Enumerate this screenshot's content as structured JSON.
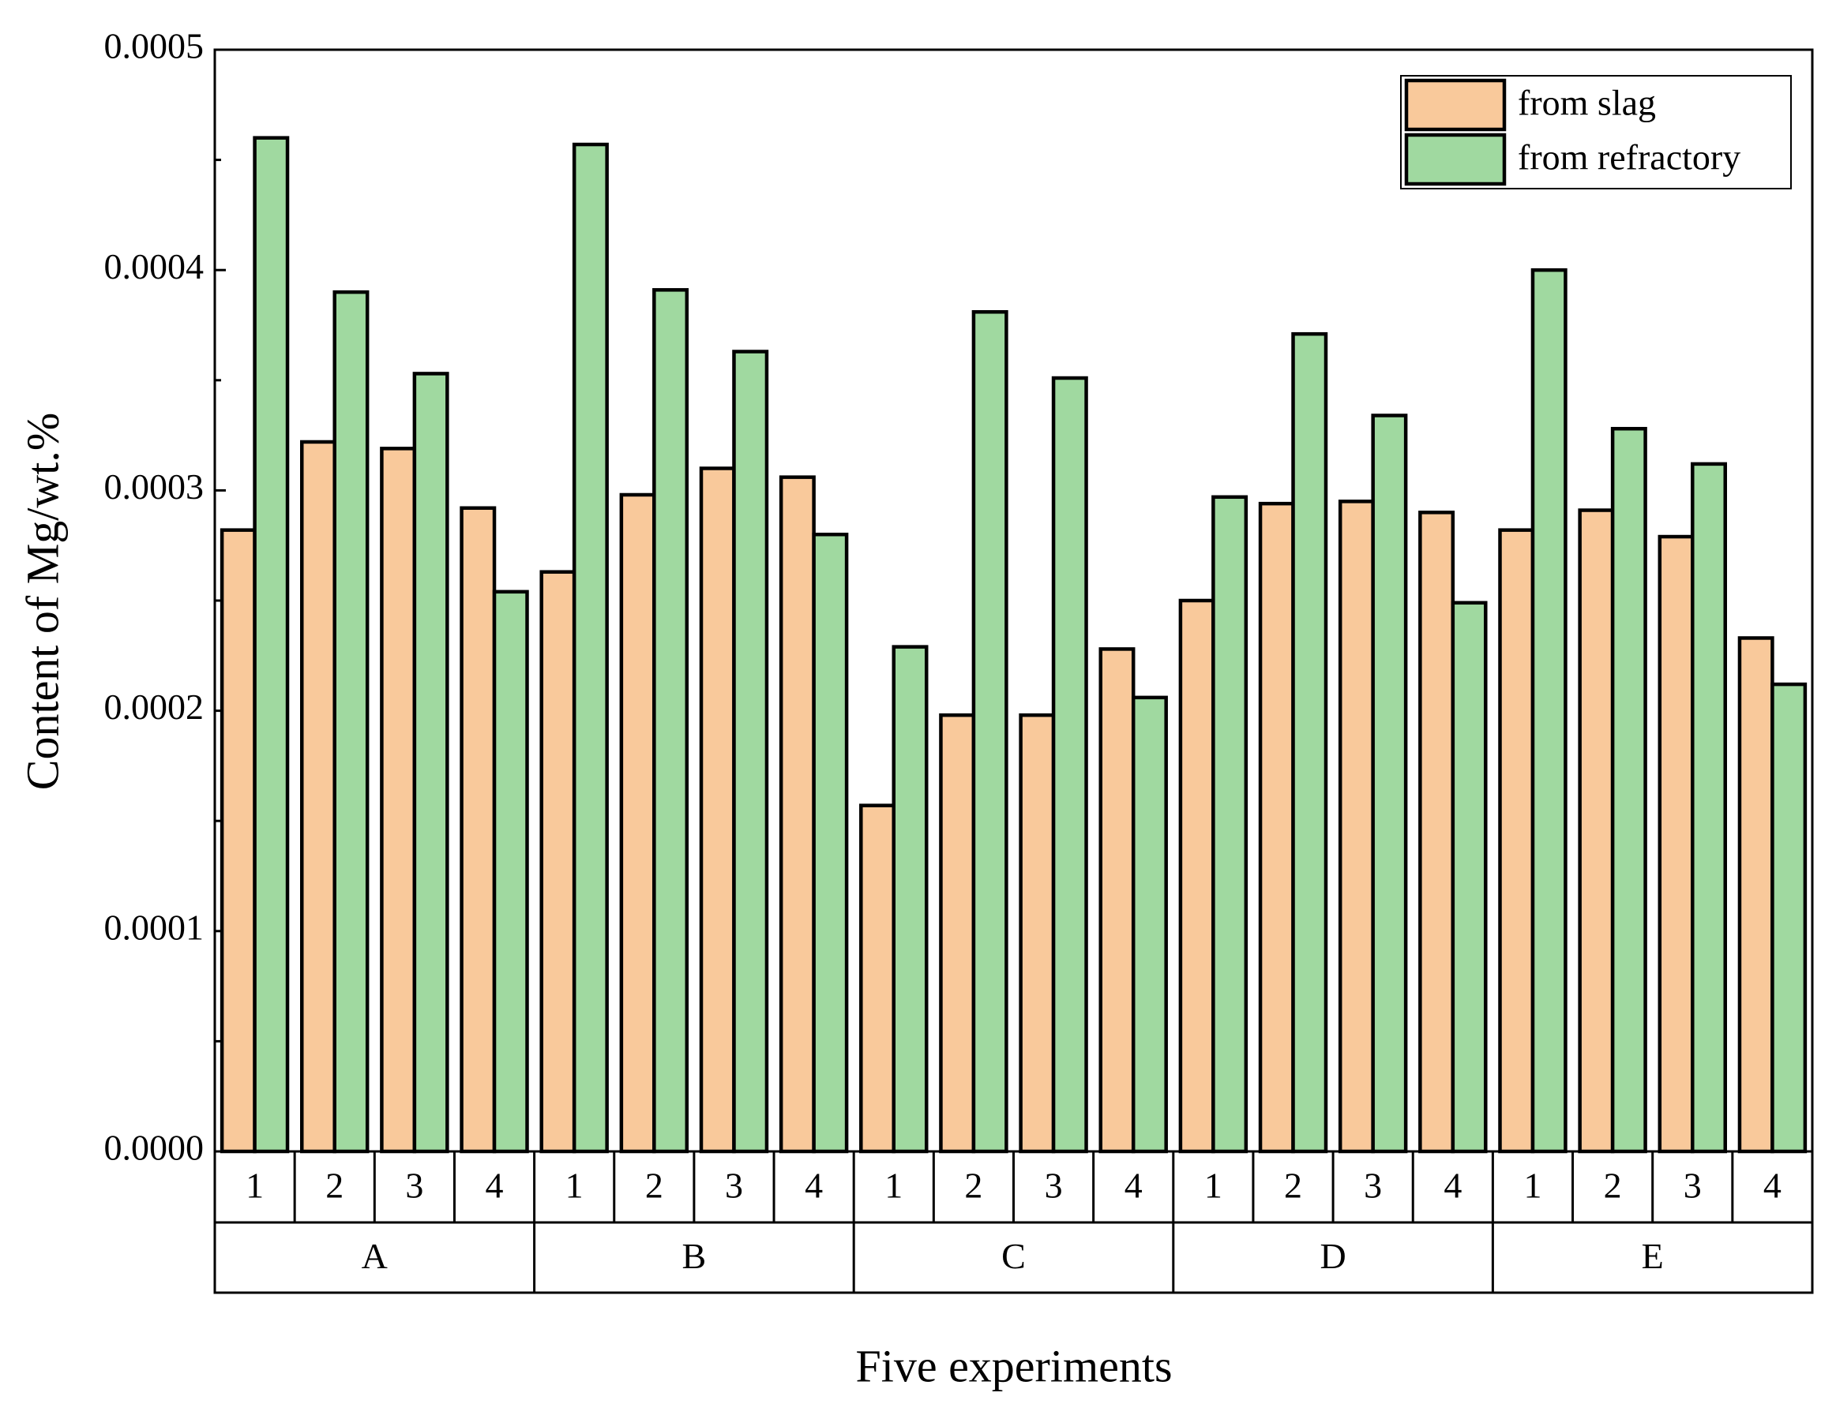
{
  "chart_data": {
    "type": "grouped-bar",
    "x_label": "Five experiments",
    "y_label": "Content of Mg/wt.%",
    "categories": [
      "1",
      "2",
      "3",
      "4",
      "1",
      "2",
      "3",
      "4",
      "1",
      "2",
      "3",
      "4",
      "1",
      "2",
      "3",
      "4",
      "1",
      "2",
      "3",
      "4"
    ],
    "groups": [
      "A",
      "B",
      "C",
      "D",
      "E"
    ],
    "series": [
      {
        "name": "from slag",
        "color": "#f9c99b",
        "values": [
          0.000282,
          0.000322,
          0.000319,
          0.000292,
          0.000263,
          0.000298,
          0.00031,
          0.000306,
          0.000157,
          0.000198,
          0.000198,
          0.000228,
          0.00025,
          0.000294,
          0.000295,
          0.00029,
          0.000282,
          0.000291,
          0.000279,
          0.000233
        ]
      },
      {
        "name": "from refractory",
        "color": "#a0d9a0",
        "values": [
          0.00046,
          0.00039,
          0.000353,
          0.000254,
          0.000457,
          0.000391,
          0.000363,
          0.00028,
          0.000229,
          0.000381,
          0.000351,
          0.000206,
          0.000297,
          0.000371,
          0.000334,
          0.000249,
          0.0004,
          0.000328,
          0.000312,
          0.000212
        ]
      }
    ],
    "ylim": [
      0,
      0.0005
    ],
    "yticks": [
      {
        "value": 0,
        "label": "0.0000"
      },
      {
        "value": 0.0001,
        "label": "0.0001"
      },
      {
        "value": 0.0002,
        "label": "0.0002"
      },
      {
        "value": 0.0003,
        "label": "0.0003"
      },
      {
        "value": 0.0004,
        "label": "0.0004"
      },
      {
        "value": 0.0005,
        "label": "0.0005"
      }
    ],
    "legend": "top-right"
  }
}
